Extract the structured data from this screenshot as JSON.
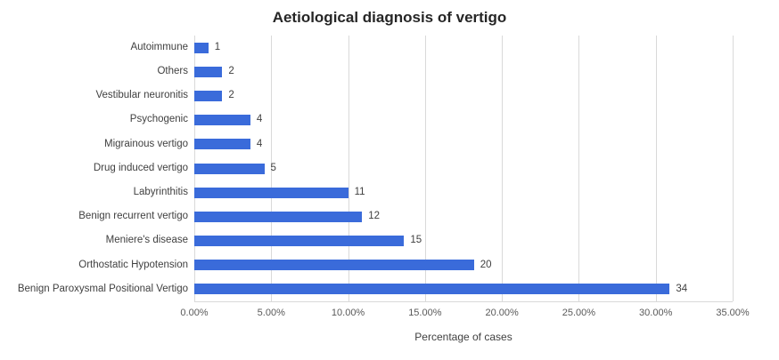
{
  "title": "Aetiological diagnosis of vertigo",
  "chart_data": {
    "type": "bar",
    "orientation": "horizontal",
    "title": "Aetiological diagnosis of vertigo",
    "xlabel": "Percentage of cases",
    "ylabel": "",
    "categories": [
      "Autoimmune",
      "Others",
      "Vestibular neuronitis",
      "Psychogenic",
      "Migrainous vertigo",
      "Drug induced vertigo",
      "Labyrinthitis",
      "Benign recurrent vertigo",
      "Meniere's disease",
      "Orthostatic Hypotension",
      "Benign Paroxysmal Positional Vertigo"
    ],
    "counts": [
      1,
      2,
      2,
      4,
      4,
      5,
      11,
      12,
      15,
      20,
      34
    ],
    "percent_values": [
      0.91,
      1.82,
      1.82,
      3.64,
      3.64,
      4.55,
      10.0,
      10.91,
      13.64,
      18.18,
      30.91
    ],
    "data_labels": [
      "1",
      "2",
      "2",
      "4",
      "4",
      "5",
      "11",
      "12",
      "15",
      "20",
      "34"
    ],
    "x_ticks": [
      "0.00%",
      "5.00%",
      "10.00%",
      "15.00%",
      "20.00%",
      "25.00%",
      "30.00%",
      "35.00%"
    ],
    "xlim": [
      0,
      35
    ],
    "grid": true,
    "legend": false,
    "bar_color": "#3a6bda",
    "gridline_color": "#d9d9d9"
  }
}
